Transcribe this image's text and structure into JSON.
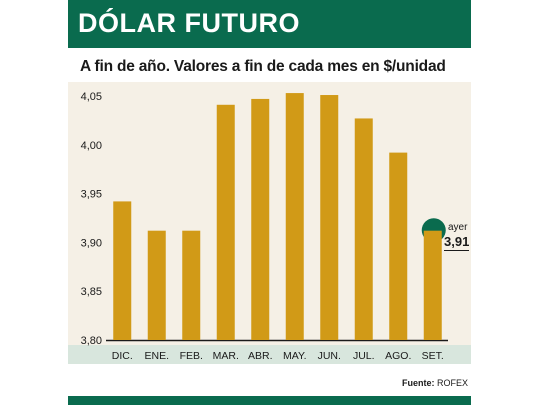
{
  "header": {
    "title": "DÓLAR FUTURO"
  },
  "subtitle": "A fin de año. Valores a fin de cada mes en $/unidad",
  "source": {
    "label": "Fuente:",
    "value": "ROFEX"
  },
  "callout": {
    "label": "ayer",
    "value": "3,91"
  },
  "colors": {
    "bar": "#d19a17",
    "header": "#0a6b4e",
    "panel": "#f5f0e6",
    "axis_band": "#d8e6dd",
    "marker": "#0a6b4e"
  },
  "chart_data": {
    "type": "bar",
    "categories": [
      "DIC.",
      "ENE.",
      "FEB.",
      "MAR.",
      "ABR.",
      "MAY.",
      "JUN.",
      "JUL.",
      "AGO.",
      "SET."
    ],
    "values": [
      3.942,
      3.912,
      3.912,
      4.041,
      4.047,
      4.053,
      4.051,
      4.027,
      3.992,
      3.912
    ],
    "yticks": [
      "3,80",
      "3,85",
      "3,90",
      "3,95",
      "4,00",
      "4,05"
    ],
    "ylim": [
      3.8,
      4.05
    ],
    "highlight_index": 9,
    "grid": false
  }
}
